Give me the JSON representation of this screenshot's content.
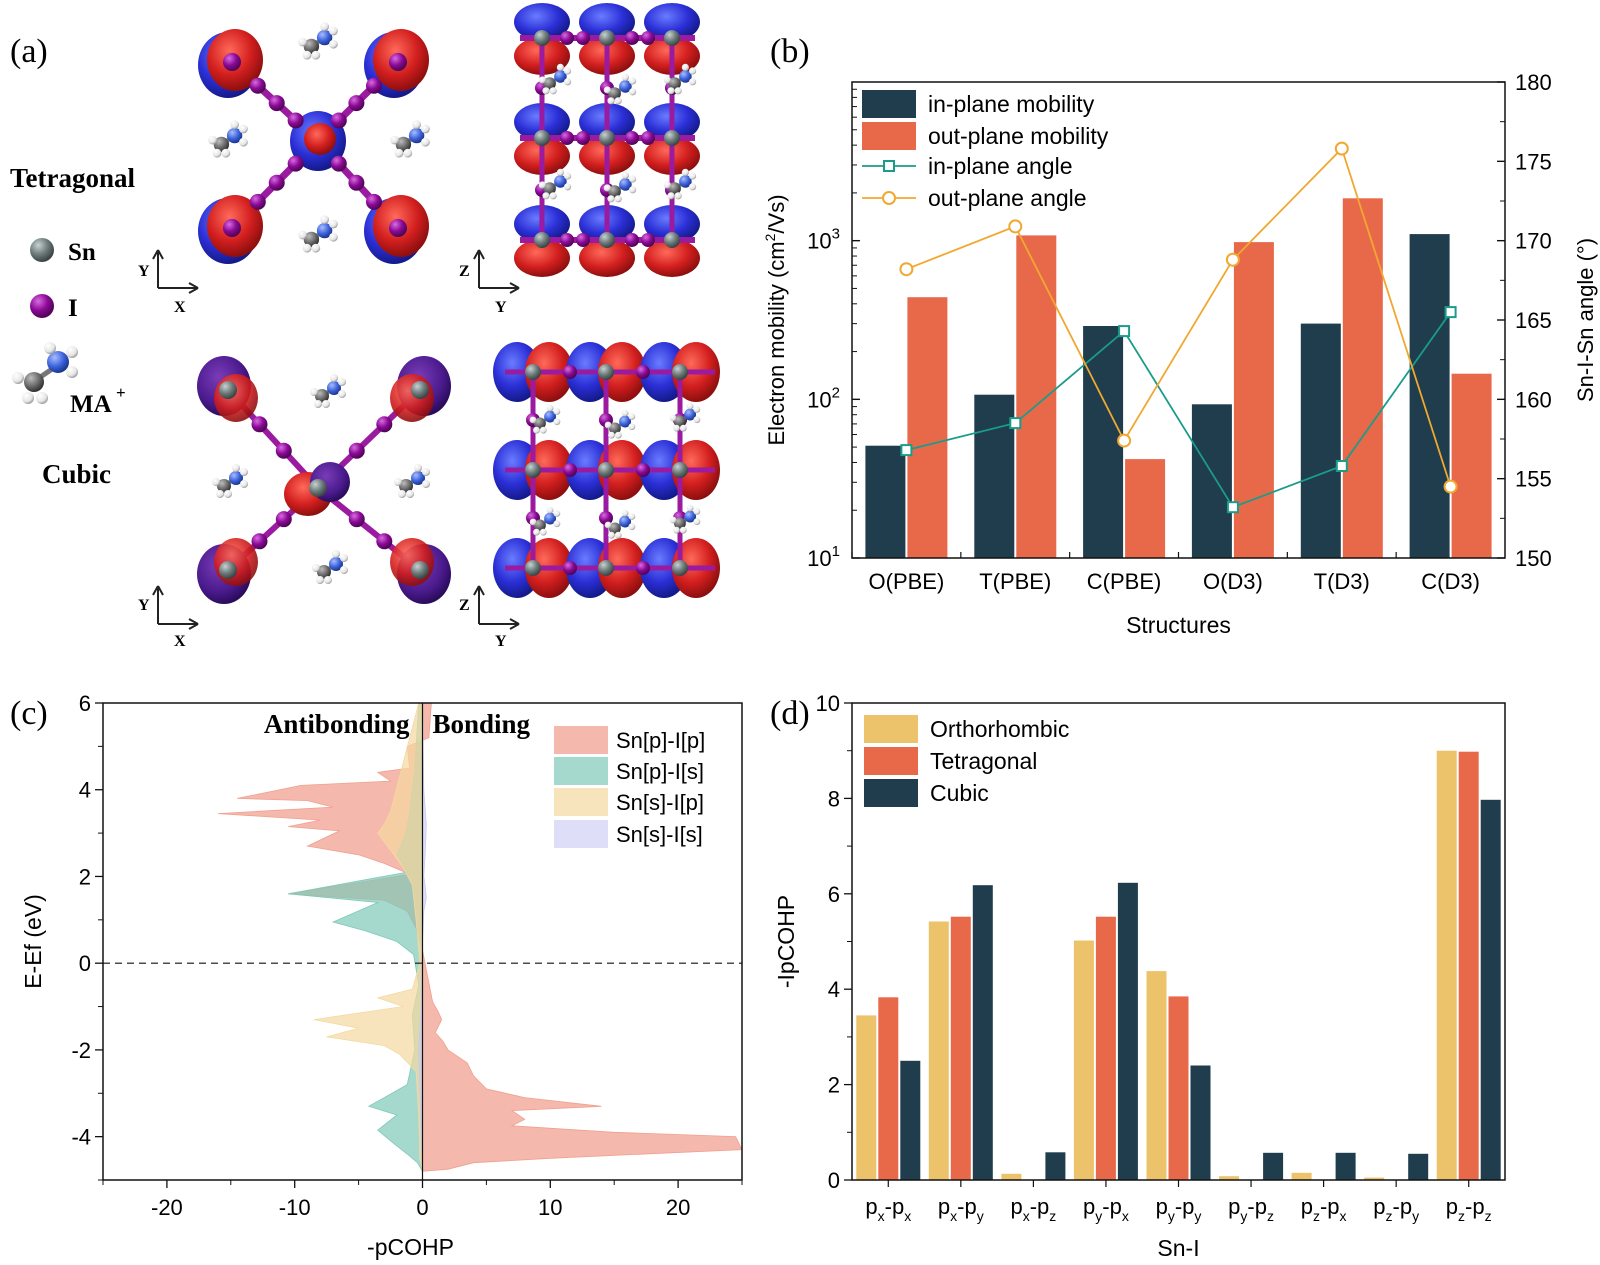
{
  "panel_a": {
    "label": "(a)",
    "tetragonal_label": "Tetragonal",
    "cubic_label": "Cubic",
    "legend": {
      "sn": "Sn",
      "i": "I",
      "ma": "MA",
      "ma_sup": "+"
    },
    "axes": {
      "top_left": [
        "Y",
        "X"
      ],
      "top_right": [
        "Z",
        "Y"
      ],
      "bottom_left": [
        "Y",
        "X"
      ],
      "bottom_right": [
        "Z",
        "Y"
      ]
    },
    "colors": {
      "lobe_red": "#d31f1f",
      "lobe_blue": "#2b2fd6",
      "bond": "#9a1aa0",
      "iodine": "#8b0a96",
      "tin": "#6f7c7c",
      "nitrogen": "#3a62d9",
      "carbon": "#6a6a6a",
      "hydrogen": "#f2f2f2"
    }
  },
  "chart_data": [
    {
      "panel": "(b)",
      "type": "bar",
      "categories": [
        "O(PBE)",
        "T(PBE)",
        "C(PBE)",
        "O(D3)",
        "T(D3)",
        "C(D3)"
      ],
      "xlabel": "Structures",
      "ylabel_pre": "Electron mobility (cm",
      "ylabel_sup": "2",
      "ylabel_post": "/Vs)",
      "y2label": "Sn-I-Sn angle (°)",
      "yscale": "log",
      "ylim": [
        10,
        10000
      ],
      "yticks": [
        {
          "value": 10,
          "base": "10",
          "exp": "1"
        },
        {
          "value": 100,
          "base": "10",
          "exp": "2"
        },
        {
          "value": 1000,
          "base": "10",
          "exp": "3"
        }
      ],
      "y2lim": [
        150,
        180
      ],
      "y2ticks": [
        "150",
        "155",
        "160",
        "165",
        "170",
        "175",
        "180"
      ],
      "legend_position": "top-left",
      "series": [
        {
          "name": "in-plane mobility",
          "kind": "bar",
          "color": "#1f3d4d",
          "values": [
            51,
            107,
            290,
            93,
            300,
            1100
          ]
        },
        {
          "name": "out-plane mobility",
          "kind": "bar",
          "color": "#e8694a",
          "values": [
            440,
            1080,
            42,
            980,
            1850,
            145
          ]
        },
        {
          "name": "in-plane angle",
          "kind": "line",
          "marker": "square",
          "color": "#1a9c8a",
          "values": [
            156.8,
            158.5,
            164.3,
            153.2,
            155.8,
            165.5
          ]
        },
        {
          "name": "out-plane angle",
          "kind": "line",
          "marker": "circle",
          "color": "#f0a830",
          "values": [
            168.2,
            170.9,
            157.4,
            168.8,
            175.8,
            154.5
          ]
        }
      ]
    },
    {
      "panel": "(c)",
      "type": "area",
      "xlabel": "-pCOHP",
      "ylabel": "E-Ef (eV)",
      "xlim": [
        -25,
        25
      ],
      "ylim": [
        -5,
        6
      ],
      "xticks": [
        "-20",
        "-10",
        "0",
        "10",
        "20"
      ],
      "yticks": [
        "-4",
        "-2",
        "0",
        "2",
        "4",
        "6"
      ],
      "annotations": [
        "Antibonding",
        "Bonding"
      ],
      "legend_position": "top-right",
      "series": [
        {
          "name": "Sn[p]-I[p]",
          "color": "#f0a090",
          "points": [
            [
              0.7,
              6.0
            ],
            [
              0.5,
              5.2
            ],
            [
              -1.2,
              5.0
            ],
            [
              -1.0,
              4.5
            ],
            [
              -3.5,
              4.4
            ],
            [
              -2.5,
              4.2
            ],
            [
              -9.5,
              4.1
            ],
            [
              -14.5,
              3.8
            ],
            [
              -9.0,
              3.75
            ],
            [
              -7.0,
              3.6
            ],
            [
              -16.0,
              3.45
            ],
            [
              -8.0,
              3.3
            ],
            [
              -10.5,
              3.15
            ],
            [
              -6.5,
              3.05
            ],
            [
              -9.0,
              2.7
            ],
            [
              -5.0,
              2.5
            ],
            [
              -3.0,
              2.3
            ],
            [
              -1.0,
              2.05
            ],
            [
              -10.5,
              1.6
            ],
            [
              -3.0,
              1.45
            ],
            [
              -1.2,
              1.2
            ],
            [
              -0.5,
              0.8
            ],
            [
              0.0,
              0.3
            ],
            [
              0.4,
              -0.3
            ],
            [
              0.8,
              -0.9
            ],
            [
              1.2,
              -1.1
            ],
            [
              1.5,
              -1.3
            ],
            [
              1.0,
              -1.6
            ],
            [
              1.6,
              -1.8
            ],
            [
              2.0,
              -2.0
            ],
            [
              3.5,
              -2.3
            ],
            [
              4.0,
              -2.6
            ],
            [
              5.0,
              -2.9
            ],
            [
              8.0,
              -3.1
            ],
            [
              14.0,
              -3.3
            ],
            [
              7.0,
              -3.4
            ],
            [
              8.0,
              -3.6
            ],
            [
              7.0,
              -3.75
            ],
            [
              15.0,
              -3.9
            ],
            [
              24.5,
              -4.0
            ],
            [
              25.0,
              -4.3
            ],
            [
              10.0,
              -4.5
            ],
            [
              4.0,
              -4.6
            ],
            [
              2.0,
              -4.75
            ],
            [
              0.0,
              -4.8
            ]
          ]
        },
        {
          "name": "Sn[p]-I[s]",
          "color": "#7fc9b9",
          "points": [
            [
              -0.3,
              6.0
            ],
            [
              -0.6,
              4.5
            ],
            [
              -1.0,
              3.5
            ],
            [
              -1.3,
              3.0
            ],
            [
              -2.0,
              2.5
            ],
            [
              -1.2,
              2.1
            ],
            [
              -10.5,
              1.6
            ],
            [
              -3.5,
              1.4
            ],
            [
              -7.0,
              0.95
            ],
            [
              -4.5,
              0.75
            ],
            [
              -2.0,
              0.5
            ],
            [
              -0.7,
              0.2
            ],
            [
              -0.3,
              -0.5
            ],
            [
              -0.8,
              -1.2
            ],
            [
              -0.6,
              -2.0
            ],
            [
              -1.2,
              -2.8
            ],
            [
              -4.2,
              -3.3
            ],
            [
              -2.0,
              -3.5
            ],
            [
              -3.5,
              -3.85
            ],
            [
              -2.5,
              -4.1
            ],
            [
              -1.2,
              -4.4
            ],
            [
              -0.4,
              -4.6
            ],
            [
              0.0,
              -4.8
            ]
          ]
        },
        {
          "name": "Sn[s]-I[p]",
          "color": "#f5d8a0",
          "points": [
            [
              -0.3,
              6.0
            ],
            [
              -2.5,
              3.5
            ],
            [
              -3.0,
              3.2
            ],
            [
              -3.5,
              3.0
            ],
            [
              -2.5,
              2.6
            ],
            [
              -1.5,
              2.2
            ],
            [
              -0.8,
              1.8
            ],
            [
              -0.5,
              1.0
            ],
            [
              -0.2,
              0.0
            ],
            [
              -0.8,
              -0.6
            ],
            [
              -3.5,
              -0.8
            ],
            [
              -1.5,
              -1.0
            ],
            [
              -8.5,
              -1.3
            ],
            [
              -5.0,
              -1.5
            ],
            [
              -7.5,
              -1.7
            ],
            [
              -3.0,
              -1.9
            ],
            [
              -1.8,
              -2.1
            ],
            [
              -0.5,
              -2.5
            ],
            [
              -0.3,
              -3.5
            ],
            [
              -0.2,
              -4.5
            ],
            [
              0.0,
              -4.8
            ]
          ]
        },
        {
          "name": "Sn[s]-I[s]",
          "color": "#c8c8f5",
          "points": [
            [
              0.0,
              6.0
            ],
            [
              0.1,
              4.0
            ],
            [
              0.3,
              3.2
            ],
            [
              0.2,
              2.5
            ],
            [
              0.1,
              2.0
            ],
            [
              0.2,
              1.8
            ],
            [
              0.3,
              1.5
            ],
            [
              0.1,
              1.2
            ],
            [
              0.0,
              0.5
            ],
            [
              -0.1,
              -1.0
            ],
            [
              -0.3,
              -2.0
            ],
            [
              -0.2,
              -3.0
            ],
            [
              0.0,
              -4.8
            ]
          ]
        }
      ]
    },
    {
      "panel": "(d)",
      "type": "bar",
      "categories": [
        {
          "a": "p",
          "sa": "x",
          "b": "p",
          "sb": "x"
        },
        {
          "a": "p",
          "sa": "x",
          "b": "p",
          "sb": "y"
        },
        {
          "a": "p",
          "sa": "x",
          "b": "p",
          "sb": "z"
        },
        {
          "a": "p",
          "sa": "y",
          "b": "p",
          "sb": "x"
        },
        {
          "a": "p",
          "sa": "y",
          "b": "p",
          "sb": "y"
        },
        {
          "a": "p",
          "sa": "y",
          "b": "p",
          "sb": "z"
        },
        {
          "a": "p",
          "sa": "z",
          "b": "p",
          "sb": "x"
        },
        {
          "a": "p",
          "sa": "z",
          "b": "p",
          "sb": "y"
        },
        {
          "a": "p",
          "sa": "z",
          "b": "p",
          "sb": "z"
        }
      ],
      "xlabel": "Sn-I",
      "ylabel": "-IpCOHP",
      "ylim": [
        0,
        10
      ],
      "yticks": [
        "0",
        "2",
        "4",
        "6",
        "8",
        "10"
      ],
      "legend_position": "top-left",
      "series": [
        {
          "name": "Orthorhombic",
          "color": "#ecc36a",
          "values": [
            3.45,
            5.42,
            0.13,
            5.02,
            4.38,
            0.08,
            0.15,
            0.05,
            9.0
          ]
        },
        {
          "name": "Tetragonal",
          "color": "#e8694a",
          "values": [
            3.83,
            5.52,
            0.0,
            5.52,
            3.85,
            0.0,
            0.0,
            0.0,
            8.98
          ]
        },
        {
          "name": "Cubic",
          "color": "#1f3d4d",
          "values": [
            2.5,
            6.18,
            0.58,
            6.23,
            2.4,
            0.57,
            0.57,
            0.55,
            7.97
          ]
        }
      ]
    }
  ],
  "panel_labels": {
    "b": "(b)",
    "c": "(c)",
    "d": "(d)"
  }
}
